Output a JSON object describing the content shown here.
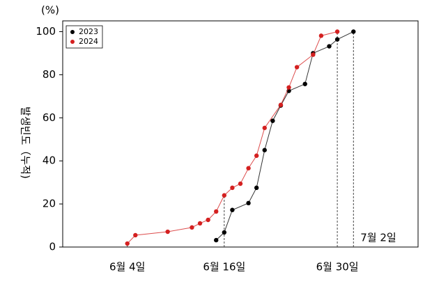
{
  "chart_data": {
    "type": "line",
    "y_unit": "(%)",
    "y_label": "발생빈도（누적)",
    "x": null,
    "series": [
      {
        "name": "2023",
        "color": "#000000",
        "x": [
          15,
          16,
          17,
          19,
          20,
          21,
          22,
          23,
          24,
          26,
          27,
          29,
          30,
          32
        ],
        "values": [
          3.2,
          6.8,
          17.2,
          20.4,
          27.5,
          45,
          58.6,
          65.7,
          72.5,
          75.7,
          90,
          93.2,
          96.4,
          100
        ]
      },
      {
        "name": "2024",
        "color": "#d42020",
        "x": [
          4,
          5,
          9,
          12,
          13,
          14,
          15,
          16,
          17,
          18,
          19,
          20,
          21,
          23,
          24,
          25,
          27,
          28,
          30
        ],
        "values": [
          1.6,
          5.5,
          7.1,
          9.1,
          11,
          12.6,
          16.5,
          24,
          27.5,
          29.4,
          36.6,
          42.4,
          55.3,
          66,
          74.1,
          83.5,
          89.3,
          98.1,
          100
        ]
      }
    ],
    "xlim": [
      -4,
      40
    ],
    "ylim": [
      0,
      105
    ],
    "xticks": [
      {
        "value": 4,
        "label": "6월 4일"
      },
      {
        "value": 16,
        "label": "6월 16일"
      },
      {
        "value": 30,
        "label": "6월 30일"
      },
      {
        "value": 32,
        "label": "7월 2일"
      }
    ],
    "yticks": [
      0,
      20,
      40,
      60,
      80,
      100
    ],
    "legend": "upper-left",
    "grid": false
  }
}
